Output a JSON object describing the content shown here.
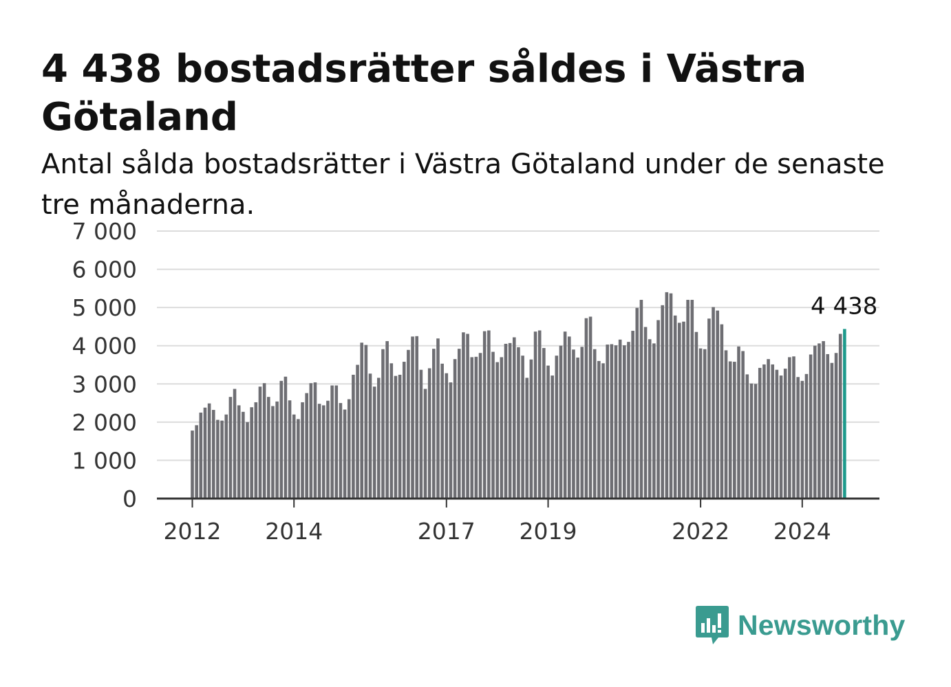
{
  "title": "4 438 bostadsrätter såldes i Västra Götaland",
  "subtitle": "Antal sålda bostadsrätter i Västra Götaland under de senaste tre månaderna.",
  "brand": {
    "name": "Newsworthy",
    "color": "#3a9b90",
    "icon": "newsworthy-chart-bubble-icon"
  },
  "chart_data": {
    "type": "bar",
    "title": "4 438 bostadsrätter såldes i Västra Götaland",
    "subtitle": "Antal sålda bostadsrätter i Västra Götaland under de senaste tre månaderna.",
    "xlabel": "",
    "ylabel": "",
    "x_start": "2012-01",
    "x_frequency": "monthly",
    "x_ticks": [
      "2012",
      "2014",
      "2017",
      "2019",
      "2022",
      "2024"
    ],
    "ylim": [
      0,
      7000
    ],
    "y_ticks": [
      "0",
      "1 000",
      "2 000",
      "3 000",
      "4 000",
      "5 000",
      "6 000",
      "7 000"
    ],
    "grid": true,
    "bar_color": "#6e6e73",
    "highlight_color": "#1e9a8c",
    "highlight_label": "4 438",
    "values": [
      1780,
      1920,
      2250,
      2380,
      2490,
      2320,
      2060,
      2040,
      2200,
      2660,
      2870,
      2440,
      2270,
      2000,
      2390,
      2520,
      2930,
      3020,
      2660,
      2420,
      2540,
      3080,
      3190,
      2570,
      2200,
      2080,
      2520,
      2760,
      3020,
      3040,
      2480,
      2440,
      2560,
      2960,
      2960,
      2500,
      2330,
      2600,
      3240,
      3500,
      4080,
      4020,
      3270,
      2930,
      3160,
      3910,
      4120,
      3540,
      3210,
      3240,
      3580,
      3890,
      4240,
      4250,
      3370,
      2870,
      3410,
      3920,
      4190,
      3530,
      3280,
      3040,
      3650,
      3920,
      4350,
      4310,
      3700,
      3710,
      3810,
      4380,
      4400,
      3840,
      3570,
      3700,
      4050,
      4070,
      4220,
      3960,
      3740,
      3160,
      3640,
      4370,
      4400,
      3940,
      3480,
      3220,
      3740,
      4000,
      4370,
      4240,
      3900,
      3690,
      3970,
      4720,
      4760,
      3910,
      3600,
      3540,
      4030,
      4040,
      4010,
      4160,
      4010,
      4100,
      4390,
      4990,
      5200,
      4490,
      4170,
      4060,
      4670,
      5060,
      5400,
      5370,
      4790,
      4600,
      4630,
      5200,
      5200,
      4360,
      3930,
      3910,
      4710,
      5010,
      4920,
      4560,
      3880,
      3590,
      3580,
      3980,
      3860,
      3250,
      3010,
      3000,
      3420,
      3510,
      3650,
      3510,
      3370,
      3220,
      3400,
      3700,
      3720,
      3180,
      3080,
      3260,
      3770,
      4000,
      4060,
      4120,
      3780,
      3550,
      3810,
      4310,
      4438
    ]
  }
}
